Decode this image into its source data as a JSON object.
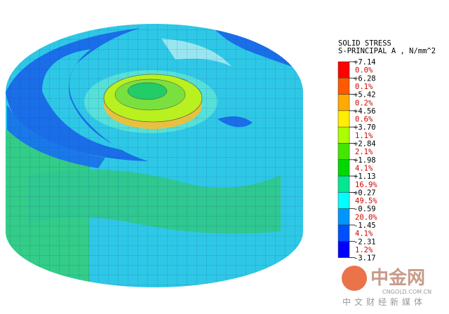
{
  "legend": {
    "title": [
      "SOLID STRESS",
      "S-PRINCIPAL A , N/mm^2"
    ],
    "bounds": [
      "+7.14",
      "+6.28",
      "+5.42",
      "+4.56",
      "+3.70",
      "+2.84",
      "+1.98",
      "+1.13",
      "+0.27",
      "-0.59",
      "-1.45",
      "-2.31",
      "-3.17"
    ],
    "percents": [
      "0.0%",
      "0.1%",
      "0.2%",
      "0.6%",
      "1.1%",
      "2.1%",
      "4.1%",
      "16.9%",
      "49.5%",
      "20.0%",
      "4.1%",
      "1.2%"
    ]
  },
  "watermark": {
    "logo": "中金网",
    "site": "CNGOLD.COM.CN",
    "tagline": "中文财经新媒体"
  }
}
